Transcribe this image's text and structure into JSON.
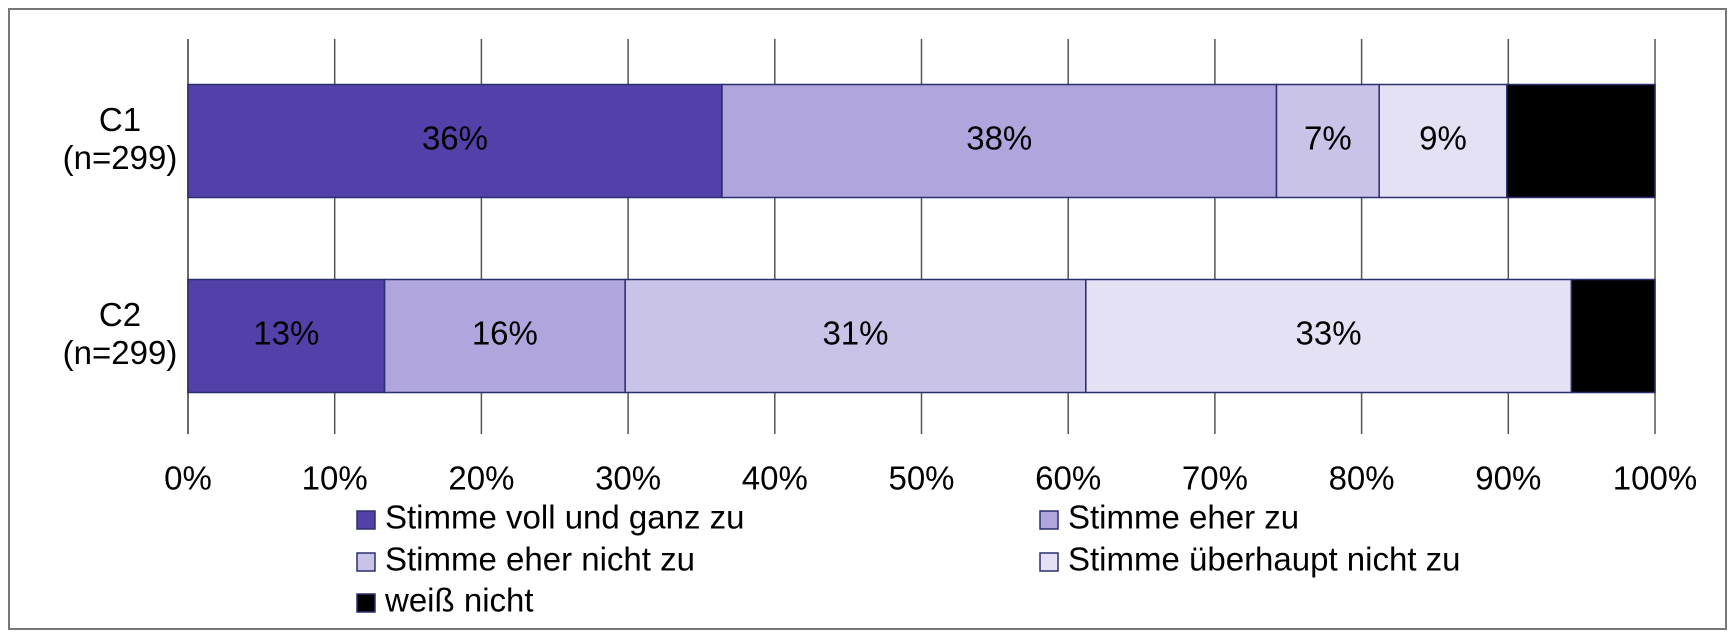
{
  "chart_data": {
    "type": "stacked-bar-horizontal",
    "categories": [
      "C1 (n=299)",
      "C2 (n=299)"
    ],
    "series": [
      {
        "name": "Stimme voll und ganz zu",
        "color": "#5340a8",
        "values": [
          36.4,
          13.4
        ],
        "value_labels": [
          "36%",
          "13%"
        ]
      },
      {
        "name": "Stimme eher zu",
        "color": "#b0a6dd",
        "values": [
          37.8,
          16.4
        ],
        "value_labels": [
          "38%",
          "16%"
        ]
      },
      {
        "name": "Stimme eher nicht zu",
        "color": "#c9c3e8",
        "values": [
          7.0,
          31.4
        ],
        "value_labels": [
          "7%",
          "31%"
        ]
      },
      {
        "name": "Stimme überhaupt nicht zu",
        "color": "#e4e1f4",
        "values": [
          8.7,
          33.1
        ],
        "value_labels": [
          "9%",
          "33%"
        ]
      },
      {
        "name": "weiß nicht",
        "color": "#000000",
        "values": [
          10.1,
          5.7
        ],
        "value_labels": [
          "10%",
          "6%"
        ]
      }
    ],
    "xlim": [
      0,
      100
    ],
    "xticks": [
      {
        "value": 0,
        "label": "0%"
      },
      {
        "value": 10,
        "label": "10%"
      },
      {
        "value": 20,
        "label": "20%"
      },
      {
        "value": 30,
        "label": "30%"
      },
      {
        "value": 40,
        "label": "40%"
      },
      {
        "value": 50,
        "label": "50%"
      },
      {
        "value": 60,
        "label": "60%"
      },
      {
        "value": 70,
        "label": "70%"
      },
      {
        "value": 80,
        "label": "80%"
      },
      {
        "value": 90,
        "label": "90%"
      },
      {
        "value": 100,
        "label": "100%"
      }
    ],
    "grid": true,
    "legend": "bottom"
  }
}
